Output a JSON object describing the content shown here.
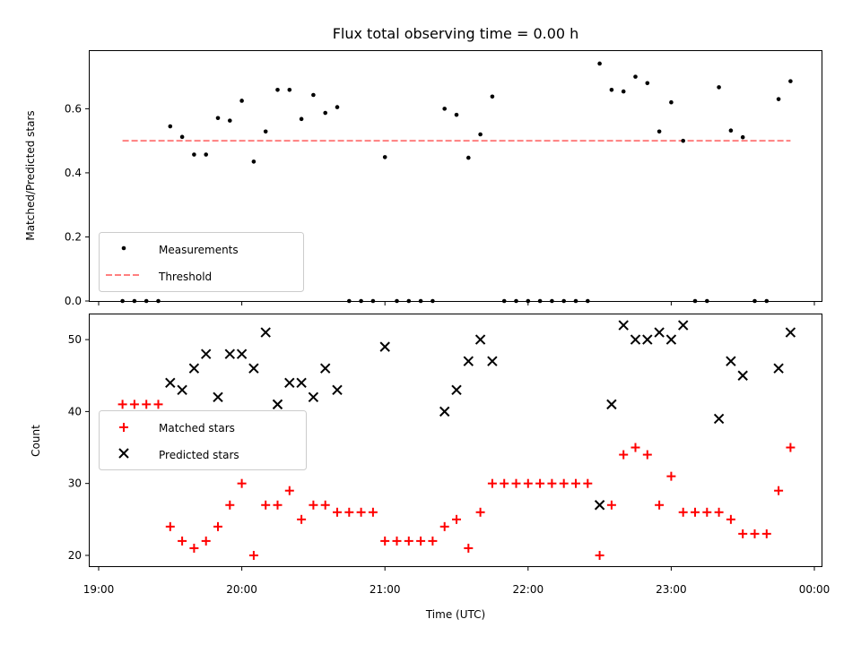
{
  "chart_data": [
    {
      "type": "scatter",
      "title": "Flux total observing time = 0.00 h",
      "ylabel": "Matched/Predicted stars",
      "xlabel": "",
      "ylim": [
        0,
        0.78
      ],
      "yticks": [
        0.0,
        0.2,
        0.4,
        0.6
      ],
      "ytick_labels": [
        "0.0",
        "0.2",
        "0.4",
        "0.6"
      ],
      "legend_position": "lower-left",
      "series": [
        {
          "name": "Measurements",
          "style": "dot",
          "color": "#000000",
          "points": [
            [
              "19:10",
              0
            ],
            [
              "19:15",
              0
            ],
            [
              "19:20",
              0
            ],
            [
              "19:25",
              0
            ],
            [
              "19:30",
              0.545
            ],
            [
              "19:35",
              0.512
            ],
            [
              "19:40",
              0.457
            ],
            [
              "19:45",
              0.457
            ],
            [
              "19:50",
              0.571
            ],
            [
              "19:55",
              0.563
            ],
            [
              "20:00",
              0.625
            ],
            [
              "20:05",
              0.435
            ],
            [
              "20:10",
              0.529
            ],
            [
              "20:15",
              0.659
            ],
            [
              "20:20",
              0.659
            ],
            [
              "20:25",
              0.568
            ],
            [
              "20:30",
              0.643
            ],
            [
              "20:35",
              0.587
            ],
            [
              "20:40",
              0.605
            ],
            [
              "20:45",
              0
            ],
            [
              "20:50",
              0
            ],
            [
              "20:55",
              0
            ],
            [
              "21:00",
              0.449
            ],
            [
              "21:05",
              0
            ],
            [
              "21:10",
              0
            ],
            [
              "21:15",
              0
            ],
            [
              "21:20",
              0
            ],
            [
              "21:25",
              0.6
            ],
            [
              "21:30",
              0.581
            ],
            [
              "21:35",
              0.447
            ],
            [
              "21:40",
              0.52
            ],
            [
              "21:45",
              0.638
            ],
            [
              "21:50",
              0
            ],
            [
              "21:55",
              0
            ],
            [
              "22:00",
              0
            ],
            [
              "22:05",
              0
            ],
            [
              "22:10",
              0
            ],
            [
              "22:15",
              0
            ],
            [
              "22:20",
              0
            ],
            [
              "22:25",
              0
            ],
            [
              "22:30",
              0.741
            ],
            [
              "22:35",
              0.659
            ],
            [
              "22:40",
              0.654
            ],
            [
              "22:45",
              0.7
            ],
            [
              "22:50",
              0.68
            ],
            [
              "22:55",
              0.529
            ],
            [
              "23:00",
              0.62
            ],
            [
              "23:05",
              0.5
            ],
            [
              "23:10",
              0
            ],
            [
              "23:15",
              0
            ],
            [
              "23:20",
              0.667
            ],
            [
              "23:25",
              0.532
            ],
            [
              "23:30",
              0.511
            ],
            [
              "23:35",
              0
            ],
            [
              "23:40",
              0
            ],
            [
              "23:45",
              0.63
            ],
            [
              "23:50",
              0.686
            ]
          ]
        },
        {
          "name": "Threshold",
          "style": "dashed-line",
          "color": "#ff7f7f",
          "points": [
            [
              "19:10",
              0.5
            ],
            [
              "23:50",
              0.5
            ]
          ]
        }
      ]
    },
    {
      "type": "scatter",
      "title": "",
      "ylabel": "Count",
      "xlabel": "Time (UTC)",
      "ylim": [
        18.5,
        53.5
      ],
      "yticks": [
        20,
        30,
        40,
        50
      ],
      "ytick_labels": [
        "20",
        "30",
        "40",
        "50"
      ],
      "xlim": [
        "19:00",
        "00:00"
      ],
      "xticks": [
        "19:00",
        "20:00",
        "21:00",
        "22:00",
        "23:00",
        "00:00"
      ],
      "xtick_labels": [
        "19:00",
        "20:00",
        "21:00",
        "22:00",
        "23:00",
        "00:00"
      ],
      "legend_position": "center-left",
      "series": [
        {
          "name": "Matched stars",
          "marker": "plus",
          "color": "#ff0000",
          "points": [
            [
              "19:10",
              41
            ],
            [
              "19:15",
              41
            ],
            [
              "19:20",
              41
            ],
            [
              "19:25",
              41
            ],
            [
              "19:30",
              24
            ],
            [
              "19:35",
              22
            ],
            [
              "19:40",
              21
            ],
            [
              "19:45",
              22
            ],
            [
              "19:50",
              24
            ],
            [
              "19:55",
              27
            ],
            [
              "20:00",
              30
            ],
            [
              "20:05",
              20
            ],
            [
              "20:10",
              27
            ],
            [
              "20:15",
              27
            ],
            [
              "20:20",
              29
            ],
            [
              "20:25",
              25
            ],
            [
              "20:30",
              27
            ],
            [
              "20:35",
              27
            ],
            [
              "20:40",
              26
            ],
            [
              "20:45",
              26
            ],
            [
              "20:50",
              26
            ],
            [
              "20:55",
              26
            ],
            [
              "21:00",
              22
            ],
            [
              "21:05",
              22
            ],
            [
              "21:10",
              22
            ],
            [
              "21:15",
              22
            ],
            [
              "21:20",
              22
            ],
            [
              "21:25",
              24
            ],
            [
              "21:30",
              25
            ],
            [
              "21:35",
              21
            ],
            [
              "21:40",
              26
            ],
            [
              "21:45",
              30
            ],
            [
              "21:50",
              30
            ],
            [
              "21:55",
              30
            ],
            [
              "22:00",
              30
            ],
            [
              "22:05",
              30
            ],
            [
              "22:10",
              30
            ],
            [
              "22:15",
              30
            ],
            [
              "22:20",
              30
            ],
            [
              "22:25",
              30
            ],
            [
              "22:30",
              20
            ],
            [
              "22:35",
              27
            ],
            [
              "22:40",
              34
            ],
            [
              "22:45",
              35
            ],
            [
              "22:50",
              34
            ],
            [
              "22:55",
              27
            ],
            [
              "23:00",
              31
            ],
            [
              "23:05",
              26
            ],
            [
              "23:10",
              26
            ],
            [
              "23:15",
              26
            ],
            [
              "23:20",
              26
            ],
            [
              "23:25",
              25
            ],
            [
              "23:30",
              23
            ],
            [
              "23:35",
              23
            ],
            [
              "23:40",
              23
            ],
            [
              "23:45",
              29
            ],
            [
              "23:50",
              35
            ]
          ]
        },
        {
          "name": "Predicted stars",
          "marker": "x",
          "color": "#000000",
          "points": [
            [
              "19:30",
              44
            ],
            [
              "19:35",
              43
            ],
            [
              "19:40",
              46
            ],
            [
              "19:45",
              48
            ],
            [
              "19:50",
              42
            ],
            [
              "19:55",
              48
            ],
            [
              "20:00",
              48
            ],
            [
              "20:05",
              46
            ],
            [
              "20:10",
              51
            ],
            [
              "20:15",
              41
            ],
            [
              "20:20",
              44
            ],
            [
              "20:25",
              44
            ],
            [
              "20:30",
              42
            ],
            [
              "20:35",
              46
            ],
            [
              "20:40",
              43
            ],
            [
              "21:00",
              49
            ],
            [
              "21:25",
              40
            ],
            [
              "21:30",
              43
            ],
            [
              "21:35",
              47
            ],
            [
              "21:40",
              50
            ],
            [
              "21:45",
              47
            ],
            [
              "22:30",
              27
            ],
            [
              "22:35",
              41
            ],
            [
              "22:40",
              52
            ],
            [
              "22:45",
              50
            ],
            [
              "22:50",
              50
            ],
            [
              "22:55",
              51
            ],
            [
              "23:00",
              50
            ],
            [
              "23:05",
              52
            ],
            [
              "23:20",
              39
            ],
            [
              "23:25",
              47
            ],
            [
              "23:30",
              45
            ],
            [
              "23:45",
              46
            ],
            [
              "23:50",
              51
            ]
          ]
        }
      ]
    }
  ]
}
